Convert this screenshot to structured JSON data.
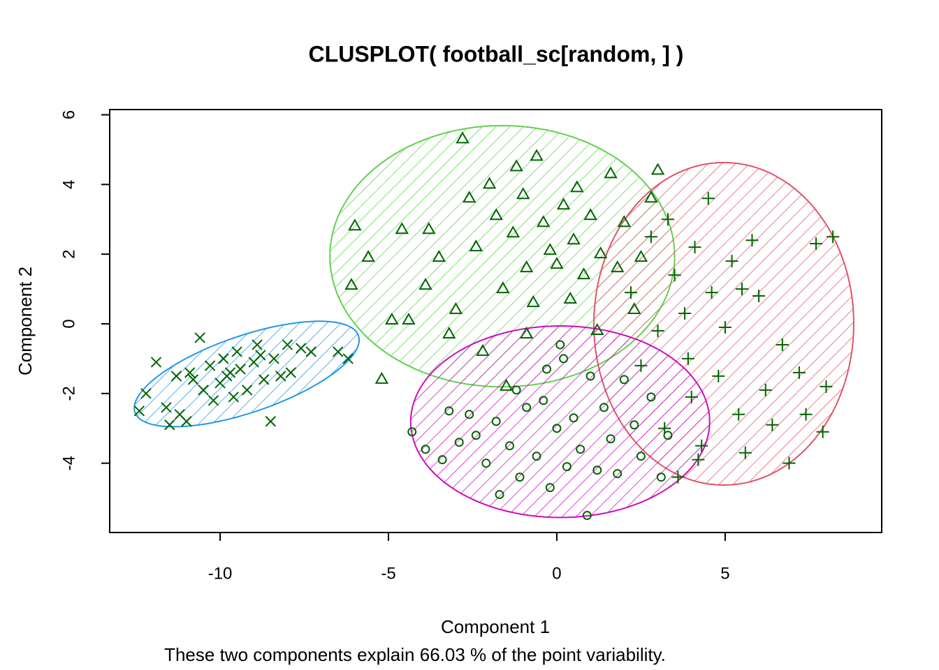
{
  "chart_data": {
    "type": "clusplot",
    "title": "CLUSPLOT( football_sc[random, ] )",
    "x_label": "Component 1",
    "y_label": "Component 2",
    "subtitle": "These two components explain 66.03 % of the point variability.",
    "xlim": [
      -13.28,
      9.65
    ],
    "ylim": [
      -5.99,
      6.15
    ],
    "xticks": [
      -10,
      -5,
      0,
      5
    ],
    "yticks": [
      -4,
      -2,
      0,
      2,
      4,
      6
    ],
    "point_color": "#006400",
    "series": [
      {
        "color": "#2297e6",
        "marker": "x",
        "ellipse": {
          "center": [
            -9.21,
            -1.44
          ],
          "axes": [
            [
              3.32,
              1.1
            ],
            [
              -0.37,
              1.04
            ]
          ]
        },
        "x": [
          -12.4,
          -12.2,
          -11.9,
          -11.6,
          -11.5,
          -11.3,
          -11.2,
          -11,
          -10.8,
          -10.6,
          -10.5,
          -10.3,
          -10.2,
          -10,
          -9.9,
          -9.7,
          -9.6,
          -9.5,
          -9.4,
          -9.2,
          -9,
          -8.9,
          -8.7,
          -8.5,
          -8.4,
          -8.2,
          -8,
          -7.9,
          -7.6,
          -7.3,
          -6.5,
          -6.2,
          -9.8,
          -10.9,
          -8.8
        ],
        "y": [
          -2.5,
          -2,
          -1.1,
          -2.4,
          -2.9,
          -1.5,
          -2.6,
          -2.8,
          -1.6,
          -0.4,
          -1.9,
          -1.2,
          -2.2,
          -1.7,
          -1,
          -1.4,
          -2.1,
          -0.8,
          -1.3,
          -1.9,
          -1.1,
          -0.6,
          -1.6,
          -2.8,
          -1,
          -1.5,
          -0.6,
          -1.4,
          -0.7,
          -0.8,
          -0.8,
          -1,
          -1.5,
          -1.4,
          -0.9
        ]
      },
      {
        "color": "#61d04f",
        "marker": "triangle",
        "ellipse": {
          "center": [
            -1.62,
            1.94
          ],
          "axes": [
            [
              5.12,
              0
            ],
            [
              0,
              3.75
            ]
          ]
        },
        "x": [
          -5.2,
          -4.9,
          -4.4,
          -3.9,
          -3.8,
          -3.5,
          -3.2,
          -3,
          -2.8,
          -2.6,
          -2.4,
          -2.2,
          -2,
          -1.8,
          -1.6,
          -1.5,
          -1.3,
          -1.2,
          -1,
          -0.9,
          -0.7,
          -0.6,
          -0.4,
          -0.2,
          0,
          0.2,
          0.4,
          0.5,
          0.8,
          1,
          1.2,
          1.3,
          1.6,
          1.8,
          2,
          2.3,
          2.5,
          2.8,
          3,
          -6.1,
          -5.6,
          -4.6,
          -6,
          -0.9,
          0.6
        ],
        "y": [
          -1.6,
          0.1,
          0.1,
          1.1,
          2.7,
          1.9,
          -0.3,
          0.4,
          5.3,
          3.6,
          2.2,
          -0.8,
          4,
          3.1,
          1,
          -1.8,
          2.6,
          4.5,
          3.7,
          1.6,
          0.6,
          4.8,
          2.9,
          2.1,
          1.7,
          3.4,
          0.7,
          2.4,
          1.4,
          3.1,
          -0.2,
          2,
          4.3,
          1.6,
          2.9,
          0.4,
          1.9,
          3.6,
          4.4,
          1.1,
          1.9,
          2.7,
          2.8,
          -0.3,
          3.9
        ]
      },
      {
        "color": "#df536b",
        "marker": "plus",
        "ellipse": {
          "center": [
            4.96,
            0
          ],
          "axes": [
            [
              3.86,
              0
            ],
            [
              0,
              4.63
            ]
          ]
        },
        "x": [
          2.2,
          2.5,
          2.8,
          3,
          3.2,
          3.3,
          3.5,
          3.6,
          3.8,
          4,
          4.1,
          4.3,
          4.5,
          4.6,
          4.8,
          5,
          5.2,
          5.4,
          5.6,
          5.8,
          6,
          6.2,
          6.4,
          6.7,
          6.9,
          7.2,
          7.4,
          7.7,
          7.9,
          8,
          8.2,
          3.9,
          5.5,
          4.2
        ],
        "y": [
          0.9,
          -1.2,
          2.5,
          -0.2,
          -3,
          3,
          1.4,
          -4.4,
          0.3,
          -2.1,
          2.2,
          -3.5,
          3.6,
          0.9,
          -1.5,
          -0.1,
          1.8,
          -2.6,
          -3.7,
          2.4,
          0.8,
          -1.9,
          -2.9,
          -0.6,
          -4,
          -1.4,
          -2.6,
          2.3,
          -3.1,
          -1.8,
          2.5,
          -1,
          1,
          -3.9
        ]
      },
      {
        "color": "#cd0bbc",
        "marker": "circle",
        "ellipse": {
          "center": [
            0.1,
            -2.81
          ],
          "axes": [
            [
              4.44,
              0
            ],
            [
              0,
              2.75
            ]
          ]
        },
        "x": [
          -4.3,
          -3.9,
          -3.4,
          -3.2,
          -2.9,
          -2.6,
          -2.4,
          -2.1,
          -1.8,
          -1.7,
          -1.4,
          -1.2,
          -1.1,
          -0.9,
          -0.6,
          -0.4,
          -0.2,
          0,
          0.2,
          0.3,
          0.5,
          0.7,
          0.9,
          1,
          1.2,
          1.4,
          1.6,
          1.8,
          2,
          2.3,
          2.5,
          2.8,
          3.1,
          3.3,
          0.1,
          -0.3
        ],
        "y": [
          -3.1,
          -3.6,
          -3.9,
          -2.5,
          -3.4,
          -2.6,
          -3.2,
          -4,
          -2.8,
          -4.9,
          -3.5,
          -1.9,
          -4.4,
          -2.4,
          -3.8,
          -2.2,
          -4.7,
          -3,
          -1,
          -4.1,
          -2.7,
          -3.6,
          -5.5,
          -1.5,
          -4.2,
          -2.4,
          -3.3,
          -4.3,
          -1.6,
          -2.9,
          -3.8,
          -2.1,
          -4.4,
          -3.2,
          -0.6,
          -1.3
        ]
      }
    ]
  }
}
